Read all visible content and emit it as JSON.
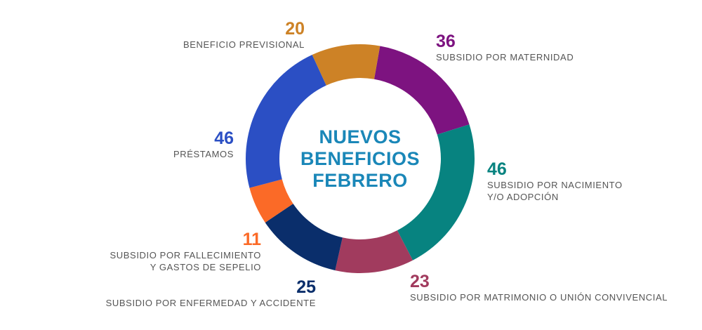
{
  "center_title": [
    "NUEVOS",
    "BENEFICIOS",
    "FEBRERO"
  ],
  "colors": {
    "title": "#1a87b8",
    "label_text": "#555555"
  },
  "chart_data": {
    "type": "pie",
    "donut": true,
    "slices": [
      {
        "name": "SUBSIDIO POR MATERNIDAD",
        "value": 36,
        "color": "#7d1380"
      },
      {
        "name": "SUBSIDIO POR NACIMIENTO Y/O ADOPCIÓN",
        "value": 46,
        "color": "#078380"
      },
      {
        "name": "SUBSIDIO POR MATRIMONIO O UNIÓN CONVIVENCIAL",
        "value": 23,
        "color": "#a13b5e"
      },
      {
        "name": "SUBSIDIO POR ENFERMEDAD Y ACCIDENTE",
        "value": 25,
        "color": "#0a2e6b"
      },
      {
        "name": "SUBSIDIO POR FALLECIMIENTO Y GASTOS DE SEPELIO",
        "value": 11,
        "color": "#fb6a27"
      },
      {
        "name": "PRÉSTAMOS",
        "value": 46,
        "color": "#2b4fc4"
      },
      {
        "name": "BENEFICIO PREVISIONAL",
        "value": 20,
        "color": "#cd8226"
      }
    ]
  },
  "labels": {
    "maternidad": {
      "value": "36",
      "line1": "SUBSIDIO POR MATERNIDAD"
    },
    "nacimiento": {
      "value": "46",
      "line1": "SUBSIDIO POR NACIMIENTO",
      "line2": "Y/O ADOPCIÓN"
    },
    "matrimonio": {
      "value": "23",
      "line1": "SUBSIDIO POR MATRIMONIO O UNIÓN CONVIVENCIAL"
    },
    "enfermedad": {
      "value": "25",
      "line1": "SUBSIDIO POR ENFERMEDAD Y ACCIDENTE"
    },
    "fallecimiento": {
      "value": "11",
      "line1": "SUBSIDIO POR FALLECIMIENTO",
      "line2": "Y GASTOS DE SEPELIO"
    },
    "prestamos": {
      "value": "46",
      "line1": "PRÉSTAMOS"
    },
    "previsional": {
      "value": "20",
      "line1": "BENEFICIO PREVISIONAL"
    }
  }
}
